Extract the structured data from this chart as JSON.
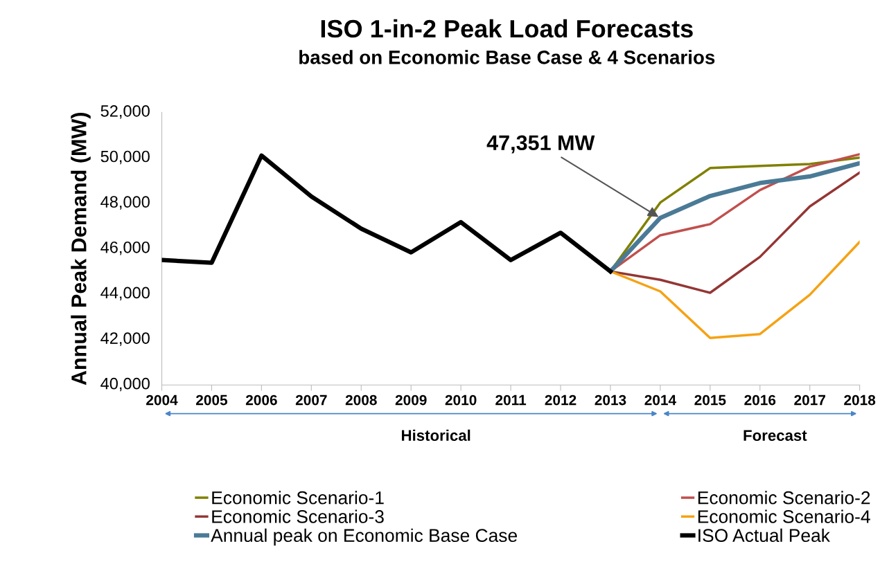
{
  "chart_data": {
    "type": "line",
    "title": "ISO 1-in-2 Peak Load Forecasts",
    "subtitle": "based on Economic Base Case & 4 Scenarios",
    "ylabel": "Annual Peak Demand (MW)",
    "categories": [
      "2004",
      "2005",
      "2006",
      "2007",
      "2008",
      "2009",
      "2010",
      "2011",
      "2012",
      "2013",
      "2014",
      "2015",
      "2016",
      "2017",
      "2018"
    ],
    "series": [
      {
        "name": "Economic Scenario-1",
        "color": "#808000",
        "values": [
          null,
          null,
          null,
          null,
          null,
          null,
          null,
          null,
          null,
          45000,
          48030,
          49550,
          49640,
          49730,
          50010
        ]
      },
      {
        "name": "Economic Scenario-2",
        "color": "#c0504d",
        "values": [
          null,
          null,
          null,
          null,
          null,
          null,
          null,
          null,
          null,
          45000,
          46590,
          47080,
          48580,
          49610,
          50160
        ]
      },
      {
        "name": "Economic Scenario-3",
        "color": "#943634",
        "values": [
          null,
          null,
          null,
          null,
          null,
          null,
          null,
          null,
          null,
          45000,
          44630,
          44060,
          45640,
          47860,
          49350
        ]
      },
      {
        "name": "Economic Scenario-4",
        "color": "#f5a214",
        "values": [
          null,
          null,
          null,
          null,
          null,
          null,
          null,
          null,
          null,
          45000,
          44120,
          42070,
          42240,
          43970,
          46300
        ]
      },
      {
        "name": "Annual peak on Economic Base Case",
        "color": "#4a7a96",
        "values": [
          null,
          null,
          null,
          null,
          null,
          null,
          null,
          null,
          null,
          45000,
          47351,
          48320,
          48890,
          49180,
          49760
        ]
      },
      {
        "name": "ISO Actual Peak",
        "color": "#000000",
        "values": [
          45500,
          45380,
          50100,
          48300,
          46880,
          45840,
          47170,
          45500,
          46700,
          45000,
          null,
          null,
          null,
          null,
          null
        ]
      }
    ],
    "ylim": [
      40000,
      52000
    ],
    "yticks": [
      {
        "value": 40000,
        "label": "40,000"
      },
      {
        "value": 42000,
        "label": "42,000"
      },
      {
        "value": 44000,
        "label": "44,000"
      },
      {
        "value": 46000,
        "label": "46,000"
      },
      {
        "value": 48000,
        "label": "48,000"
      },
      {
        "value": 50000,
        "label": "50,000"
      },
      {
        "value": 52000,
        "label": "52,000"
      }
    ],
    "annotations": [
      {
        "text": "47,351 MW",
        "x": "2014",
        "y": 47351
      },
      "Historical",
      "Forecast"
    ],
    "grid": false,
    "legend": "bottom",
    "marker": "none",
    "line_style": "solid"
  }
}
